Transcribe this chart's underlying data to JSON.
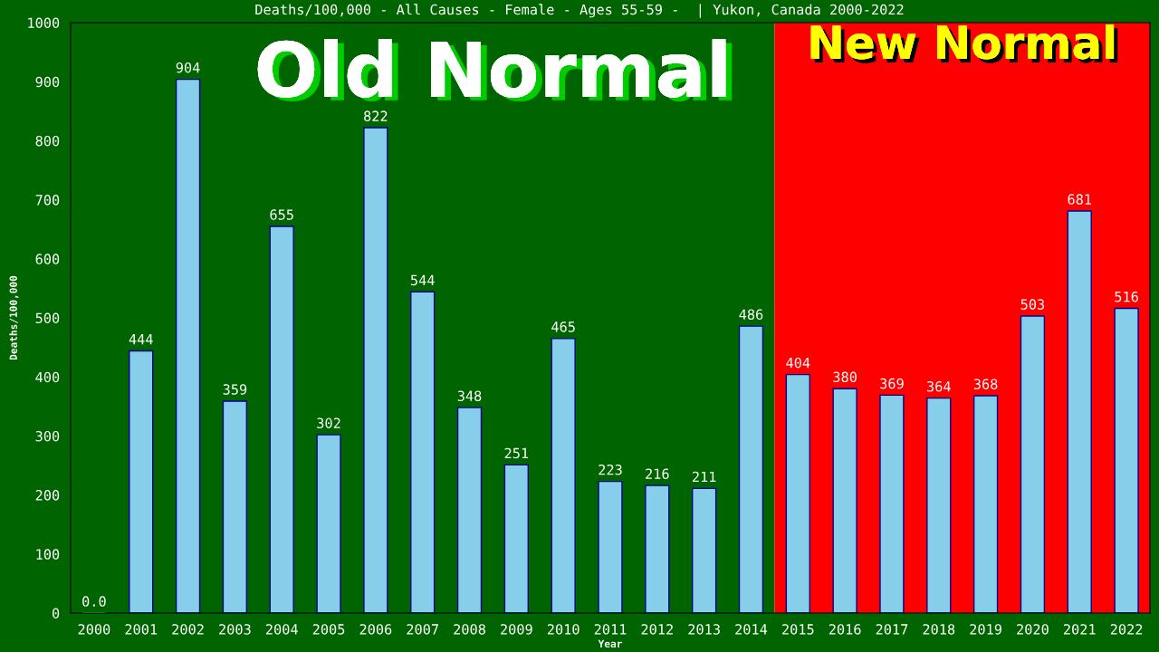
{
  "chart_data": {
    "type": "bar",
    "title": "Deaths/100,000 - All Causes - Female - Ages 55-59 -  | Yukon, Canada 2000-2022",
    "xlabel": "Year",
    "ylabel": "Deaths/100,000",
    "categories": [
      "2000",
      "2001",
      "2002",
      "2003",
      "2004",
      "2005",
      "2006",
      "2007",
      "2008",
      "2009",
      "2010",
      "2011",
      "2012",
      "2013",
      "2014",
      "2015",
      "2016",
      "2017",
      "2018",
      "2019",
      "2020",
      "2021",
      "2022"
    ],
    "values": [
      0,
      444,
      904,
      359,
      655,
      302,
      822,
      544,
      348,
      251,
      465,
      223,
      216,
      211,
      486,
      404,
      380,
      369,
      364,
      368,
      503,
      681,
      516
    ],
    "value_labels": [
      "0.0",
      "444",
      "904",
      "359",
      "655",
      "302",
      "822",
      "544",
      "348",
      "251",
      "465",
      "223",
      "216",
      "211",
      "486",
      "404",
      "380",
      "369",
      "364",
      "368",
      "503",
      "681",
      "516"
    ],
    "color": "#87ceeb",
    "ylim": [
      0,
      1000
    ],
    "yticks": [
      0,
      100,
      200,
      300,
      400,
      500,
      600,
      700,
      800,
      900,
      1000
    ],
    "grid": false,
    "legend": false,
    "bands": [
      {
        "axis": "x",
        "from": "2000",
        "to": "2014",
        "label": "Old Normal",
        "color": "#006400"
      },
      {
        "axis": "x",
        "from": "2015",
        "to": "2022",
        "label": "New Normal",
        "color": "#ff0000"
      }
    ]
  }
}
